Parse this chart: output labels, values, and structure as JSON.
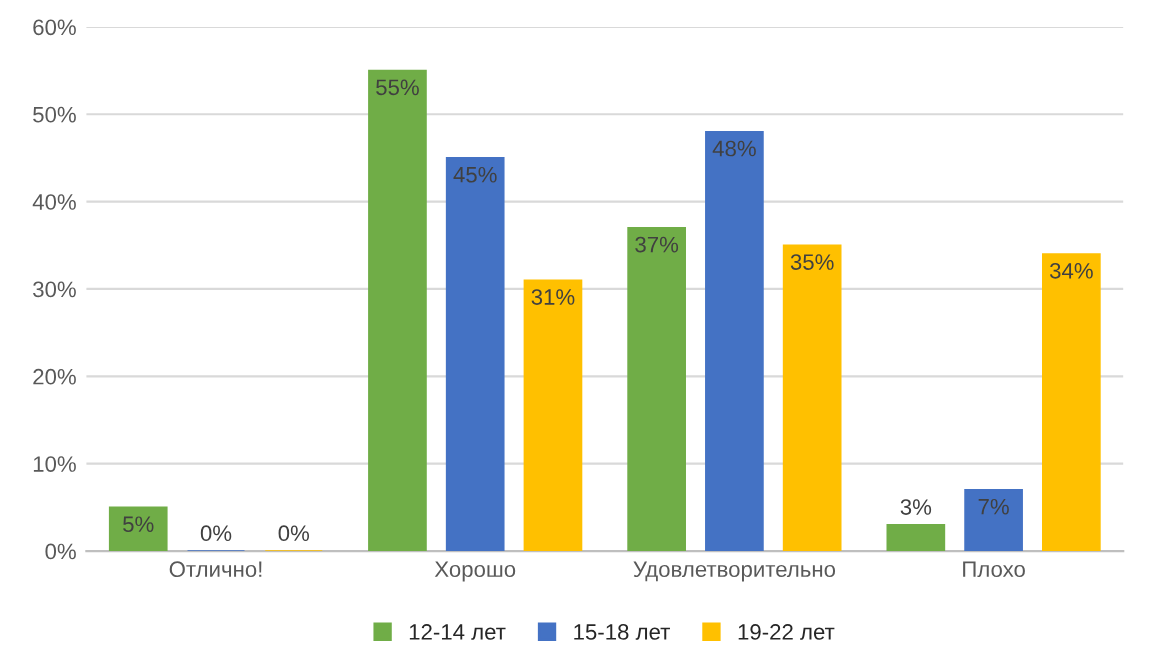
{
  "chart_data": {
    "type": "bar",
    "categories": [
      "Отлично!",
      "Хорошо",
      "Удовлетворительно",
      "Плохо"
    ],
    "series": [
      {
        "name": "12-14 лет",
        "color": "#70ad47",
        "values": [
          5,
          55,
          37,
          3
        ],
        "value_labels": [
          "5%",
          "55%",
          "37%",
          "3%"
        ]
      },
      {
        "name": "15-18 лет",
        "color": "#4472c4",
        "values": [
          0,
          45,
          48,
          7
        ],
        "value_labels": [
          "0%",
          "45%",
          "48%",
          "7%"
        ]
      },
      {
        "name": "19-22 лет",
        "color": "#ffc000",
        "values": [
          0,
          31,
          35,
          34
        ],
        "value_labels": [
          "0%",
          "31%",
          "35%",
          "34%"
        ]
      }
    ],
    "ylim": [
      0,
      60
    ],
    "yticks": [
      {
        "value": 0,
        "label": "0%"
      },
      {
        "value": 10,
        "label": "10%"
      },
      {
        "value": 20,
        "label": "20%"
      },
      {
        "value": 30,
        "label": "30%"
      },
      {
        "value": 40,
        "label": "40%"
      },
      {
        "value": 50,
        "label": "50%"
      },
      {
        "value": 60,
        "label": "60%"
      }
    ],
    "grid": "y",
    "legend": "bottom"
  }
}
